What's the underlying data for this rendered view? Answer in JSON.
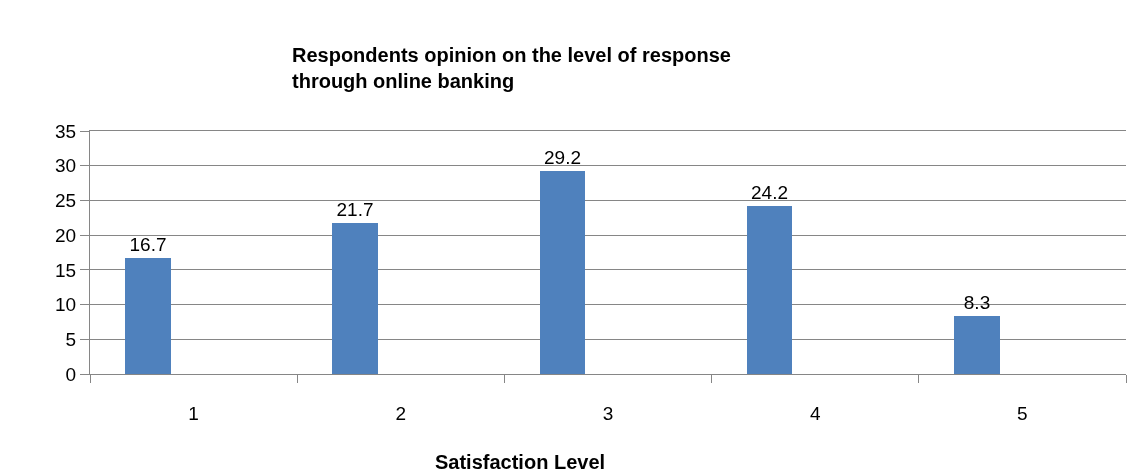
{
  "chart_data": {
    "type": "bar",
    "title": "Respondents opinion on the level of response\nthrough online banking",
    "xlabel": "Satisfaction Level",
    "categories": [
      "1",
      "2",
      "3",
      "4",
      "5"
    ],
    "values": [
      16.7,
      21.7,
      29.2,
      24.2,
      8.3
    ],
    "color": "#4f81bd",
    "ylim": [
      0,
      35
    ],
    "yticks": [
      0,
      5,
      10,
      15,
      20,
      25,
      30,
      35
    ],
    "grid": "y",
    "data_labels": true
  }
}
